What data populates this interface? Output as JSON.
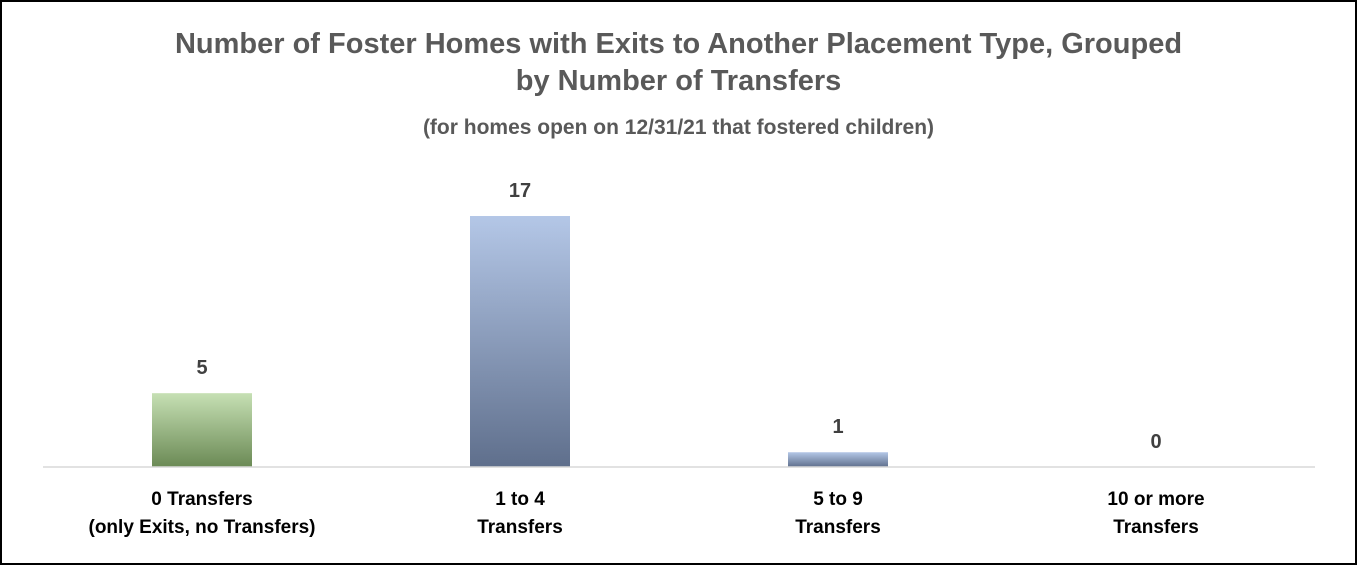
{
  "chart_data": {
    "type": "bar",
    "title_lines": [
      "Number of Foster Homes with Exits to Another Placement Type, Grouped",
      "by Number of Transfers"
    ],
    "subtitle": "(for homes open on 12/31/21 that fostered children)",
    "categories": [
      [
        "0 Transfers",
        "(only Exits, no Transfers)"
      ],
      [
        "1 to 4",
        "Transfers"
      ],
      [
        "5 to 9",
        "Transfers"
      ],
      [
        "10 or more",
        "Transfers"
      ]
    ],
    "values": [
      5,
      17,
      1,
      0
    ],
    "ylim": [
      0,
      17
    ],
    "grid": false,
    "legend": "none",
    "data_labels": true,
    "bar_colors": [
      [
        "#c6e0b4",
        "#6b8a55"
      ],
      [
        "#b4c7e7",
        "#5f6f8c"
      ],
      [
        "#b4c7e7",
        "#5f6f8c"
      ],
      [
        "#b4c7e7",
        "#5f6f8c"
      ]
    ],
    "axis_color": "#d9d9d9"
  }
}
